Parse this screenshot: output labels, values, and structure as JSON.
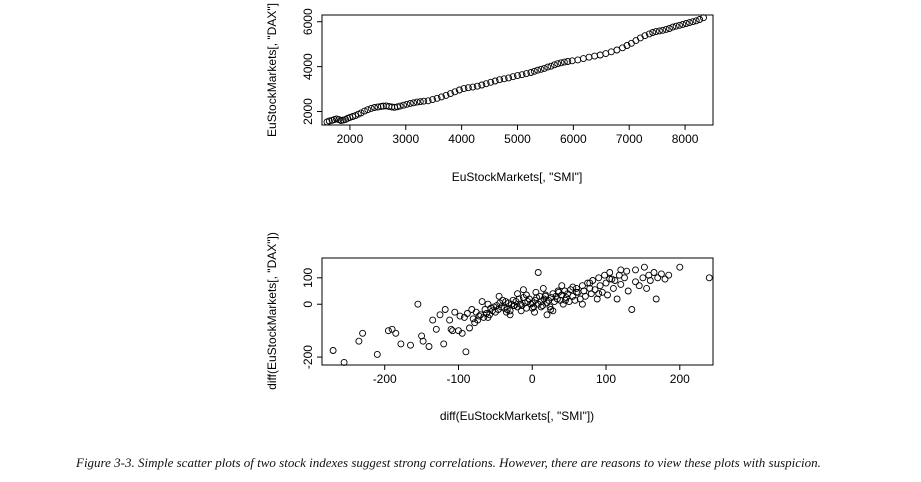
{
  "caption": "Figure 3-3. Simple scatter plots of two stock indexes suggest strong correlations. However, there are reasons to view these plots with suspicion.",
  "chart_data": [
    {
      "type": "scatter",
      "title": "",
      "xlabel": "EuStockMarkets[, \"SMI\"]",
      "ylabel": "EuStockMarkets[, \"DAX\"]",
      "xlim": [
        1500,
        8500
      ],
      "ylim": [
        1400,
        6300
      ],
      "xticks": [
        2000,
        3000,
        4000,
        5000,
        6000,
        7000,
        8000
      ],
      "xtick_labels": [
        "2000",
        "3000",
        "4000",
        "5000",
        "6000",
        "7000",
        "8000"
      ],
      "yticks": [
        2000,
        4000,
        6000
      ],
      "ytick_labels": [
        "2000",
        "4000",
        "6000"
      ],
      "grid": false,
      "marker": "open-circle",
      "series": [
        {
          "x": [
            1590,
            1630,
            1680,
            1720,
            1760,
            1800,
            1840,
            1880,
            1920,
            1960,
            2000,
            2050,
            2100,
            2150,
            2200,
            2260,
            2320,
            2380,
            2440,
            2500,
            2560,
            2600,
            2650,
            2700,
            2750,
            2800,
            2850,
            2900,
            2960,
            3020,
            3080,
            3140,
            3200,
            3260,
            3320,
            3400,
            3480,
            3560,
            3640,
            3720,
            3800,
            3880,
            3960,
            4040,
            4120,
            4200,
            4280,
            4360,
            4440,
            4520,
            4600,
            4680,
            4760,
            4840,
            4920,
            5000,
            5080,
            5160,
            5240,
            5300,
            5360,
            5420,
            5480,
            5540,
            5600,
            5660,
            5720,
            5780,
            5840,
            5900,
            5980,
            6080,
            6180,
            6280,
            6380,
            6480,
            6580,
            6680,
            6780,
            6880,
            6960,
            7040,
            7120,
            7200,
            7280,
            7360,
            7420,
            7480,
            7540,
            7600,
            7660,
            7720,
            7780,
            7840,
            7900,
            7960,
            8020,
            8080,
            8140,
            8200,
            8260,
            8330
          ],
          "y": [
            1540,
            1580,
            1610,
            1640,
            1670,
            1640,
            1600,
            1620,
            1650,
            1700,
            1740,
            1780,
            1820,
            1880,
            1940,
            2020,
            2080,
            2140,
            2180,
            2200,
            2230,
            2240,
            2250,
            2230,
            2200,
            2190,
            2210,
            2240,
            2280,
            2320,
            2360,
            2390,
            2420,
            2440,
            2460,
            2480,
            2530,
            2590,
            2650,
            2720,
            2800,
            2880,
            2960,
            3020,
            3060,
            3090,
            3130,
            3180,
            3240,
            3300,
            3360,
            3420,
            3460,
            3500,
            3550,
            3600,
            3640,
            3690,
            3740,
            3790,
            3840,
            3880,
            3920,
            3980,
            4020,
            4080,
            4130,
            4170,
            4200,
            4230,
            4260,
            4300,
            4360,
            4420,
            4470,
            4520,
            4580,
            4660,
            4740,
            4840,
            4940,
            5040,
            5160,
            5280,
            5380,
            5460,
            5520,
            5560,
            5590,
            5620,
            5660,
            5700,
            5760,
            5800,
            5840,
            5880,
            5920,
            5960,
            6000,
            6040,
            6100,
            6180
          ]
        }
      ]
    },
    {
      "type": "scatter",
      "title": "",
      "xlabel": "diff(EuStockMarkets[, \"SMI\"])",
      "ylabel": "diff(EuStockMarkets[, \"DAX\"])",
      "xlim": [
        -285,
        245
      ],
      "ylim": [
        -230,
        175
      ],
      "xticks": [
        -200,
        -100,
        0,
        100,
        200
      ],
      "xtick_labels": [
        "-200",
        "-100",
        "0",
        "100",
        "200"
      ],
      "yticks": [
        -200,
        0,
        100
      ],
      "ytick_labels": [
        "-200",
        "0",
        "100"
      ],
      "grid": false,
      "marker": "open-circle",
      "series": [
        {
          "x": [
            -270,
            -255,
            -235,
            -230,
            -210,
            -195,
            -190,
            -185,
            -178,
            -165,
            -155,
            -150,
            -148,
            -140,
            -135,
            -130,
            -125,
            -120,
            -118,
            -112,
            -110,
            -108,
            -105,
            -100,
            -98,
            -95,
            -92,
            -90,
            -88,
            -85,
            -82,
            -80,
            -78,
            -76,
            -74,
            -72,
            -70,
            -68,
            -66,
            -64,
            -62,
            -60,
            -58,
            -56,
            -54,
            -52,
            -50,
            -48,
            -46,
            -44,
            -42,
            -40,
            -38,
            -36,
            -34,
            -32,
            -30,
            -28,
            -26,
            -24,
            -22,
            -20,
            -18,
            -16,
            -14,
            -12,
            -10,
            -8,
            -6,
            -4,
            -2,
            0,
            2,
            4,
            6,
            8,
            10,
            12,
            14,
            16,
            18,
            20,
            22,
            24,
            26,
            28,
            30,
            32,
            34,
            36,
            38,
            40,
            42,
            44,
            46,
            48,
            50,
            52,
            55,
            58,
            60,
            62,
            65,
            68,
            70,
            72,
            75,
            78,
            80,
            82,
            85,
            88,
            90,
            92,
            95,
            98,
            100,
            102,
            105,
            108,
            110,
            112,
            115,
            118,
            120,
            125,
            128,
            130,
            135,
            140,
            145,
            150,
            152,
            155,
            158,
            160,
            165,
            168,
            170,
            175,
            180,
            185,
            200,
            240,
            -35,
            -20,
            -15,
            -8,
            0,
            5,
            12,
            18,
            25,
            35,
            45,
            55,
            68,
            78,
            90,
            105,
            120,
            140,
            -60,
            -45,
            -30,
            -12,
            3,
            15,
            28,
            40,
            8,
            -25,
            20,
            60
          ],
          "y": [
            -175,
            -220,
            -140,
            -110,
            -190,
            -100,
            -95,
            -110,
            -150,
            -155,
            0,
            -120,
            -140,
            -160,
            -60,
            -95,
            -40,
            -150,
            -20,
            -60,
            -95,
            -100,
            -30,
            -100,
            -45,
            -110,
            -50,
            -180,
            -35,
            -90,
            -20,
            -55,
            -70,
            -30,
            -60,
            -45,
            -40,
            10,
            -50,
            -20,
            -35,
            0,
            -40,
            -15,
            -25,
            -10,
            -30,
            -5,
            -20,
            5,
            -10,
            15,
            -15,
            10,
            -20,
            5,
            -25,
            0,
            15,
            -5,
            10,
            -10,
            20,
            0,
            -5,
            25,
            5,
            -15,
            10,
            20,
            0,
            5,
            -10,
            15,
            25,
            0,
            30,
            10,
            -5,
            20,
            35,
            5,
            15,
            -10,
            25,
            40,
            10,
            30,
            20,
            45,
            15,
            35,
            0,
            50,
            25,
            40,
            10,
            55,
            30,
            15,
            60,
            45,
            20,
            70,
            50,
            30,
            80,
            60,
            40,
            90,
            55,
            20,
            100,
            70,
            45,
            110,
            80,
            35,
            120,
            95,
            60,
            90,
            20,
            110,
            75,
            100,
            125,
            50,
            -20,
            130,
            70,
            100,
            140,
            60,
            110,
            90,
            120,
            20,
            100,
            115,
            95,
            110,
            140,
            100,
            -30,
            40,
            -25,
            35,
            -15,
            45,
            -10,
            30,
            -20,
            50,
            15,
            65,
            0,
            80,
            40,
            95,
            130,
            85,
            -50,
            30,
            -40,
            55,
            -30,
            60,
            -25,
            70,
            120,
            -5,
            -40,
            45
          ]
        }
      ]
    }
  ]
}
